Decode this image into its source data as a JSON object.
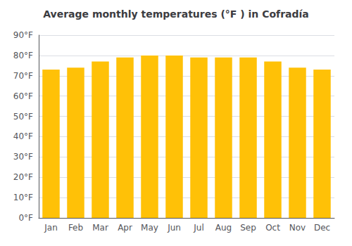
{
  "chart_data": {
    "type": "bar",
    "title": "Average monthly temperatures (°F ) in Cofradía",
    "categories": [
      "Jan",
      "Feb",
      "Mar",
      "Apr",
      "May",
      "Jun",
      "Jul",
      "Aug",
      "Sep",
      "Oct",
      "Nov",
      "Dec"
    ],
    "values": [
      73,
      74,
      77,
      79,
      80,
      80,
      79,
      79,
      79,
      77,
      74,
      73
    ],
    "color": "#FFC107",
    "ylim": [
      0,
      90
    ],
    "yticks": [
      {
        "value": 0,
        "label": "0°F"
      },
      {
        "value": 10,
        "label": "10°F"
      },
      {
        "value": 20,
        "label": "20°F"
      },
      {
        "value": 30,
        "label": "30°F"
      },
      {
        "value": 40,
        "label": "40°F"
      },
      {
        "value": 50,
        "label": "50°F"
      },
      {
        "value": 60,
        "label": "60°F"
      },
      {
        "value": 70,
        "label": "70°F"
      },
      {
        "value": 80,
        "label": "80°F"
      },
      {
        "value": 90,
        "label": "90°F"
      }
    ],
    "grid": true
  }
}
